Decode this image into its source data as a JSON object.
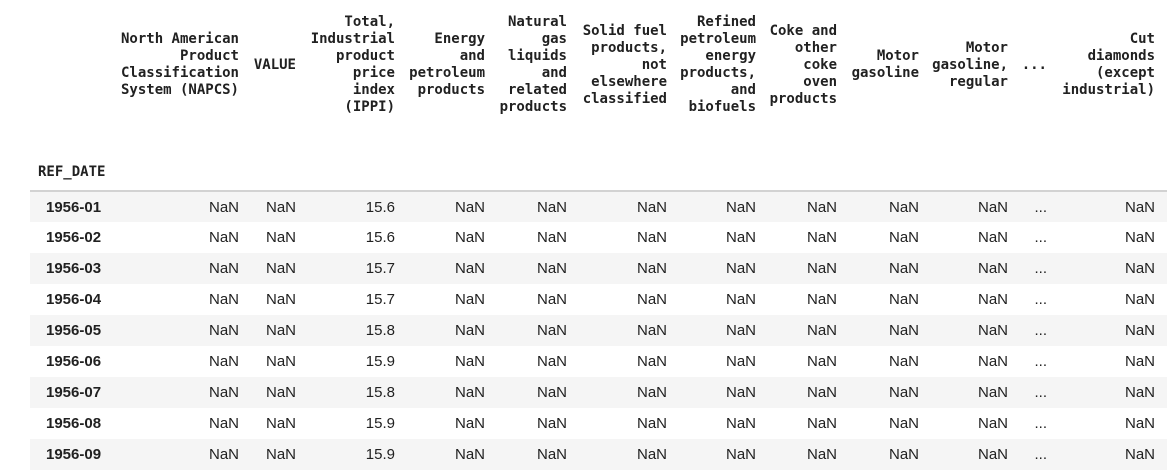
{
  "colors": {
    "stripe_row": "#f5f5f5",
    "header_border": "#d2d2d2",
    "text": "#212121",
    "background": "#ffffff"
  },
  "table": {
    "index_name": "REF_DATE",
    "column_headers": [
      "North American\nProduct\nClassification\nSystem (NAPCS)",
      "VALUE",
      "Total,\nIndustrial\nproduct\nprice\nindex\n(IPPI)",
      "Energy\nand\npetroleum\nproducts",
      "Natural\ngas\nliquids\nand\nrelated\nproducts",
      "Solid fuel\nproducts,\nnot\nelsewhere\nclassified",
      "Refined\npetroleum\nenergy\nproducts,\nand\nbiofuels",
      "Coke and\nother\ncoke\noven\nproducts",
      "Motor\ngasoline",
      "Motor\ngasoline,\nregular",
      "...",
      "Cut\ndiamonds\n(except\nindustrial)"
    ],
    "rows": [
      {
        "index": "1956-01",
        "cells": [
          "NaN",
          "NaN",
          "15.6",
          "NaN",
          "NaN",
          "NaN",
          "NaN",
          "NaN",
          "NaN",
          "NaN",
          "...",
          "NaN"
        ]
      },
      {
        "index": "1956-02",
        "cells": [
          "NaN",
          "NaN",
          "15.6",
          "NaN",
          "NaN",
          "NaN",
          "NaN",
          "NaN",
          "NaN",
          "NaN",
          "...",
          "NaN"
        ]
      },
      {
        "index": "1956-03",
        "cells": [
          "NaN",
          "NaN",
          "15.7",
          "NaN",
          "NaN",
          "NaN",
          "NaN",
          "NaN",
          "NaN",
          "NaN",
          "...",
          "NaN"
        ]
      },
      {
        "index": "1956-04",
        "cells": [
          "NaN",
          "NaN",
          "15.7",
          "NaN",
          "NaN",
          "NaN",
          "NaN",
          "NaN",
          "NaN",
          "NaN",
          "...",
          "NaN"
        ]
      },
      {
        "index": "1956-05",
        "cells": [
          "NaN",
          "NaN",
          "15.8",
          "NaN",
          "NaN",
          "NaN",
          "NaN",
          "NaN",
          "NaN",
          "NaN",
          "...",
          "NaN"
        ]
      },
      {
        "index": "1956-06",
        "cells": [
          "NaN",
          "NaN",
          "15.9",
          "NaN",
          "NaN",
          "NaN",
          "NaN",
          "NaN",
          "NaN",
          "NaN",
          "...",
          "NaN"
        ]
      },
      {
        "index": "1956-07",
        "cells": [
          "NaN",
          "NaN",
          "15.8",
          "NaN",
          "NaN",
          "NaN",
          "NaN",
          "NaN",
          "NaN",
          "NaN",
          "...",
          "NaN"
        ]
      },
      {
        "index": "1956-08",
        "cells": [
          "NaN",
          "NaN",
          "15.9",
          "NaN",
          "NaN",
          "NaN",
          "NaN",
          "NaN",
          "NaN",
          "NaN",
          "...",
          "NaN"
        ]
      },
      {
        "index": "1956-09",
        "cells": [
          "NaN",
          "NaN",
          "15.9",
          "NaN",
          "NaN",
          "NaN",
          "NaN",
          "NaN",
          "NaN",
          "NaN",
          "...",
          "NaN"
        ]
      }
    ]
  }
}
